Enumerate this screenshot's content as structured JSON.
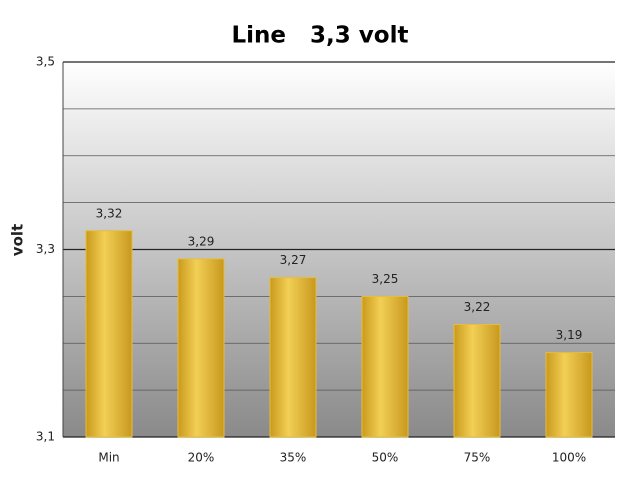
{
  "chart_data": {
    "type": "bar",
    "title": "Line   3,3 volt",
    "y_label": "volt",
    "categories": [
      "Min",
      "20%",
      "35%",
      "50%",
      "75%",
      "100%"
    ],
    "values": [
      3.32,
      3.29,
      3.27,
      3.25,
      3.22,
      3.19
    ],
    "value_labels": [
      "3,32",
      "3,29",
      "3,27",
      "3,25",
      "3,22",
      "3,19"
    ],
    "color": "#e6bd3c",
    "ylim": [
      3.1,
      3.5
    ],
    "yticks": [
      {
        "value": 3.1,
        "label": "3,1"
      },
      {
        "value": 3.3,
        "label": "3,3"
      },
      {
        "value": 3.5,
        "label": "3,5"
      }
    ],
    "minor_yticks": [
      3.15,
      3.2,
      3.25,
      3.35,
      3.4,
      3.45
    ],
    "grid": true
  }
}
